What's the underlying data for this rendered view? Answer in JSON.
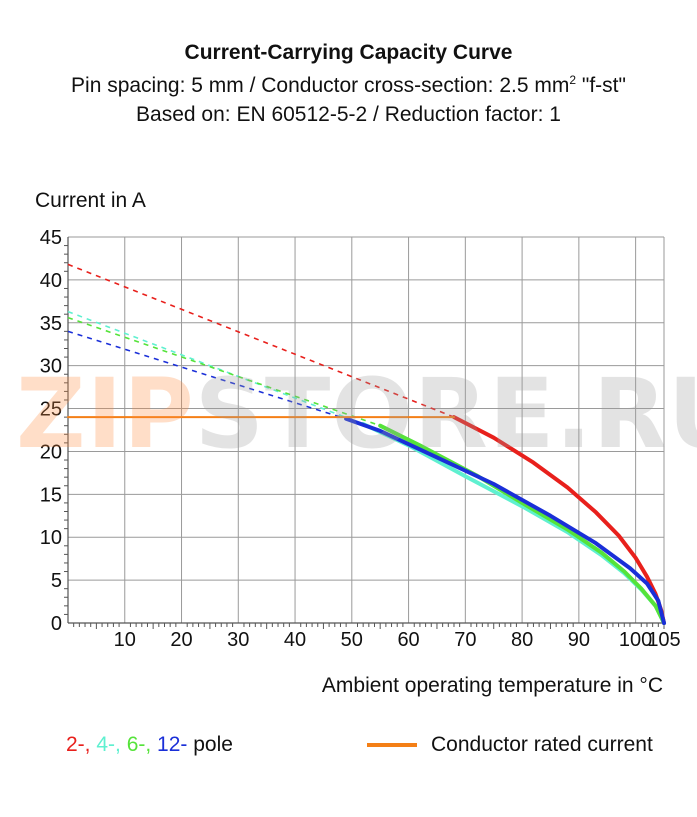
{
  "header": {
    "title": "Current-Carrying Capacity Curve",
    "line2_pre": "Pin spacing: 5 mm / Conductor cross-section: 2.5 mm",
    "line2_sup": "2",
    "line2_post": " \"f-st\"",
    "line3": "Based on: EN 60512-5-2 / Reduction factor: 1"
  },
  "watermark": {
    "part1": "ZIP",
    "part2": "STORE.RU"
  },
  "legend": {
    "pole_2": "2-,",
    "pole_4": " 4-,",
    "pole_6": " 6-,",
    "pole_12": " 12-",
    "pole_suffix": " pole",
    "rated": "Conductor rated current"
  },
  "colors": {
    "pole_2": "#e8201c",
    "pole_4": "#5ff0d0",
    "pole_6": "#55e33a",
    "pole_12": "#1a2fd8",
    "rated": "#f47f16",
    "grid": "#9a9a9a"
  },
  "chart_data": {
    "type": "line",
    "xlabel": "Ambient operating temperature in °C",
    "ylabel": "Current in A",
    "xlim": [
      0,
      105
    ],
    "ylim": [
      0,
      45
    ],
    "x_ticks": [
      10,
      20,
      30,
      40,
      50,
      60,
      70,
      80,
      90,
      100,
      105
    ],
    "y_ticks": [
      0,
      5,
      10,
      15,
      20,
      25,
      30,
      35,
      40,
      45
    ],
    "grid": true,
    "series": [
      {
        "name": "2-",
        "color": "#e8201c",
        "extrapolated": [
          [
            0,
            41.8
          ],
          [
            68,
            24.0
          ]
        ],
        "values": [
          [
            68,
            24.0
          ],
          [
            75,
            21.6
          ],
          [
            82,
            18.7
          ],
          [
            88,
            15.8
          ],
          [
            93,
            12.9
          ],
          [
            97,
            10.2
          ],
          [
            100,
            7.6
          ],
          [
            102,
            5.4
          ],
          [
            103.5,
            3.4
          ],
          [
            104.5,
            1.5
          ],
          [
            105,
            0
          ]
        ]
      },
      {
        "name": "4-",
        "color": "#5ff0d0",
        "extrapolated": [
          [
            0,
            36.3
          ],
          [
            52,
            23.2
          ]
        ],
        "values": [
          [
            52,
            23.2
          ],
          [
            60,
            20.7
          ],
          [
            70,
            17.1
          ],
          [
            80,
            13.6
          ],
          [
            88,
            10.6
          ],
          [
            94,
            7.9
          ],
          [
            98,
            5.8
          ],
          [
            101,
            3.9
          ],
          [
            103.5,
            2.0
          ],
          [
            105,
            0
          ]
        ]
      },
      {
        "name": "6-",
        "color": "#55e33a",
        "extrapolated": [
          [
            0,
            35.6
          ],
          [
            55,
            23.0
          ]
        ],
        "values": [
          [
            55,
            23.0
          ],
          [
            62,
            20.7
          ],
          [
            72,
            17.2
          ],
          [
            80,
            14.0
          ],
          [
            88,
            10.9
          ],
          [
            94,
            8.2
          ],
          [
            98,
            6.0
          ],
          [
            101,
            4.0
          ],
          [
            103.5,
            2.0
          ],
          [
            105,
            0
          ]
        ]
      },
      {
        "name": "12-",
        "color": "#1a2fd8",
        "extrapolated": [
          [
            0,
            34.0
          ],
          [
            49,
            23.8
          ]
        ],
        "values": [
          [
            49,
            23.8
          ],
          [
            55,
            22.4
          ],
          [
            65,
            19.3
          ],
          [
            75,
            16.2
          ],
          [
            85,
            12.5
          ],
          [
            93,
            9.3
          ],
          [
            99,
            6.4
          ],
          [
            102,
            4.6
          ],
          [
            104,
            2.6
          ],
          [
            105,
            0
          ]
        ]
      },
      {
        "name": "Conductor rated current",
        "color": "#f47f16",
        "values": [
          [
            0,
            24.0
          ],
          [
            68,
            24.0
          ]
        ]
      }
    ]
  }
}
